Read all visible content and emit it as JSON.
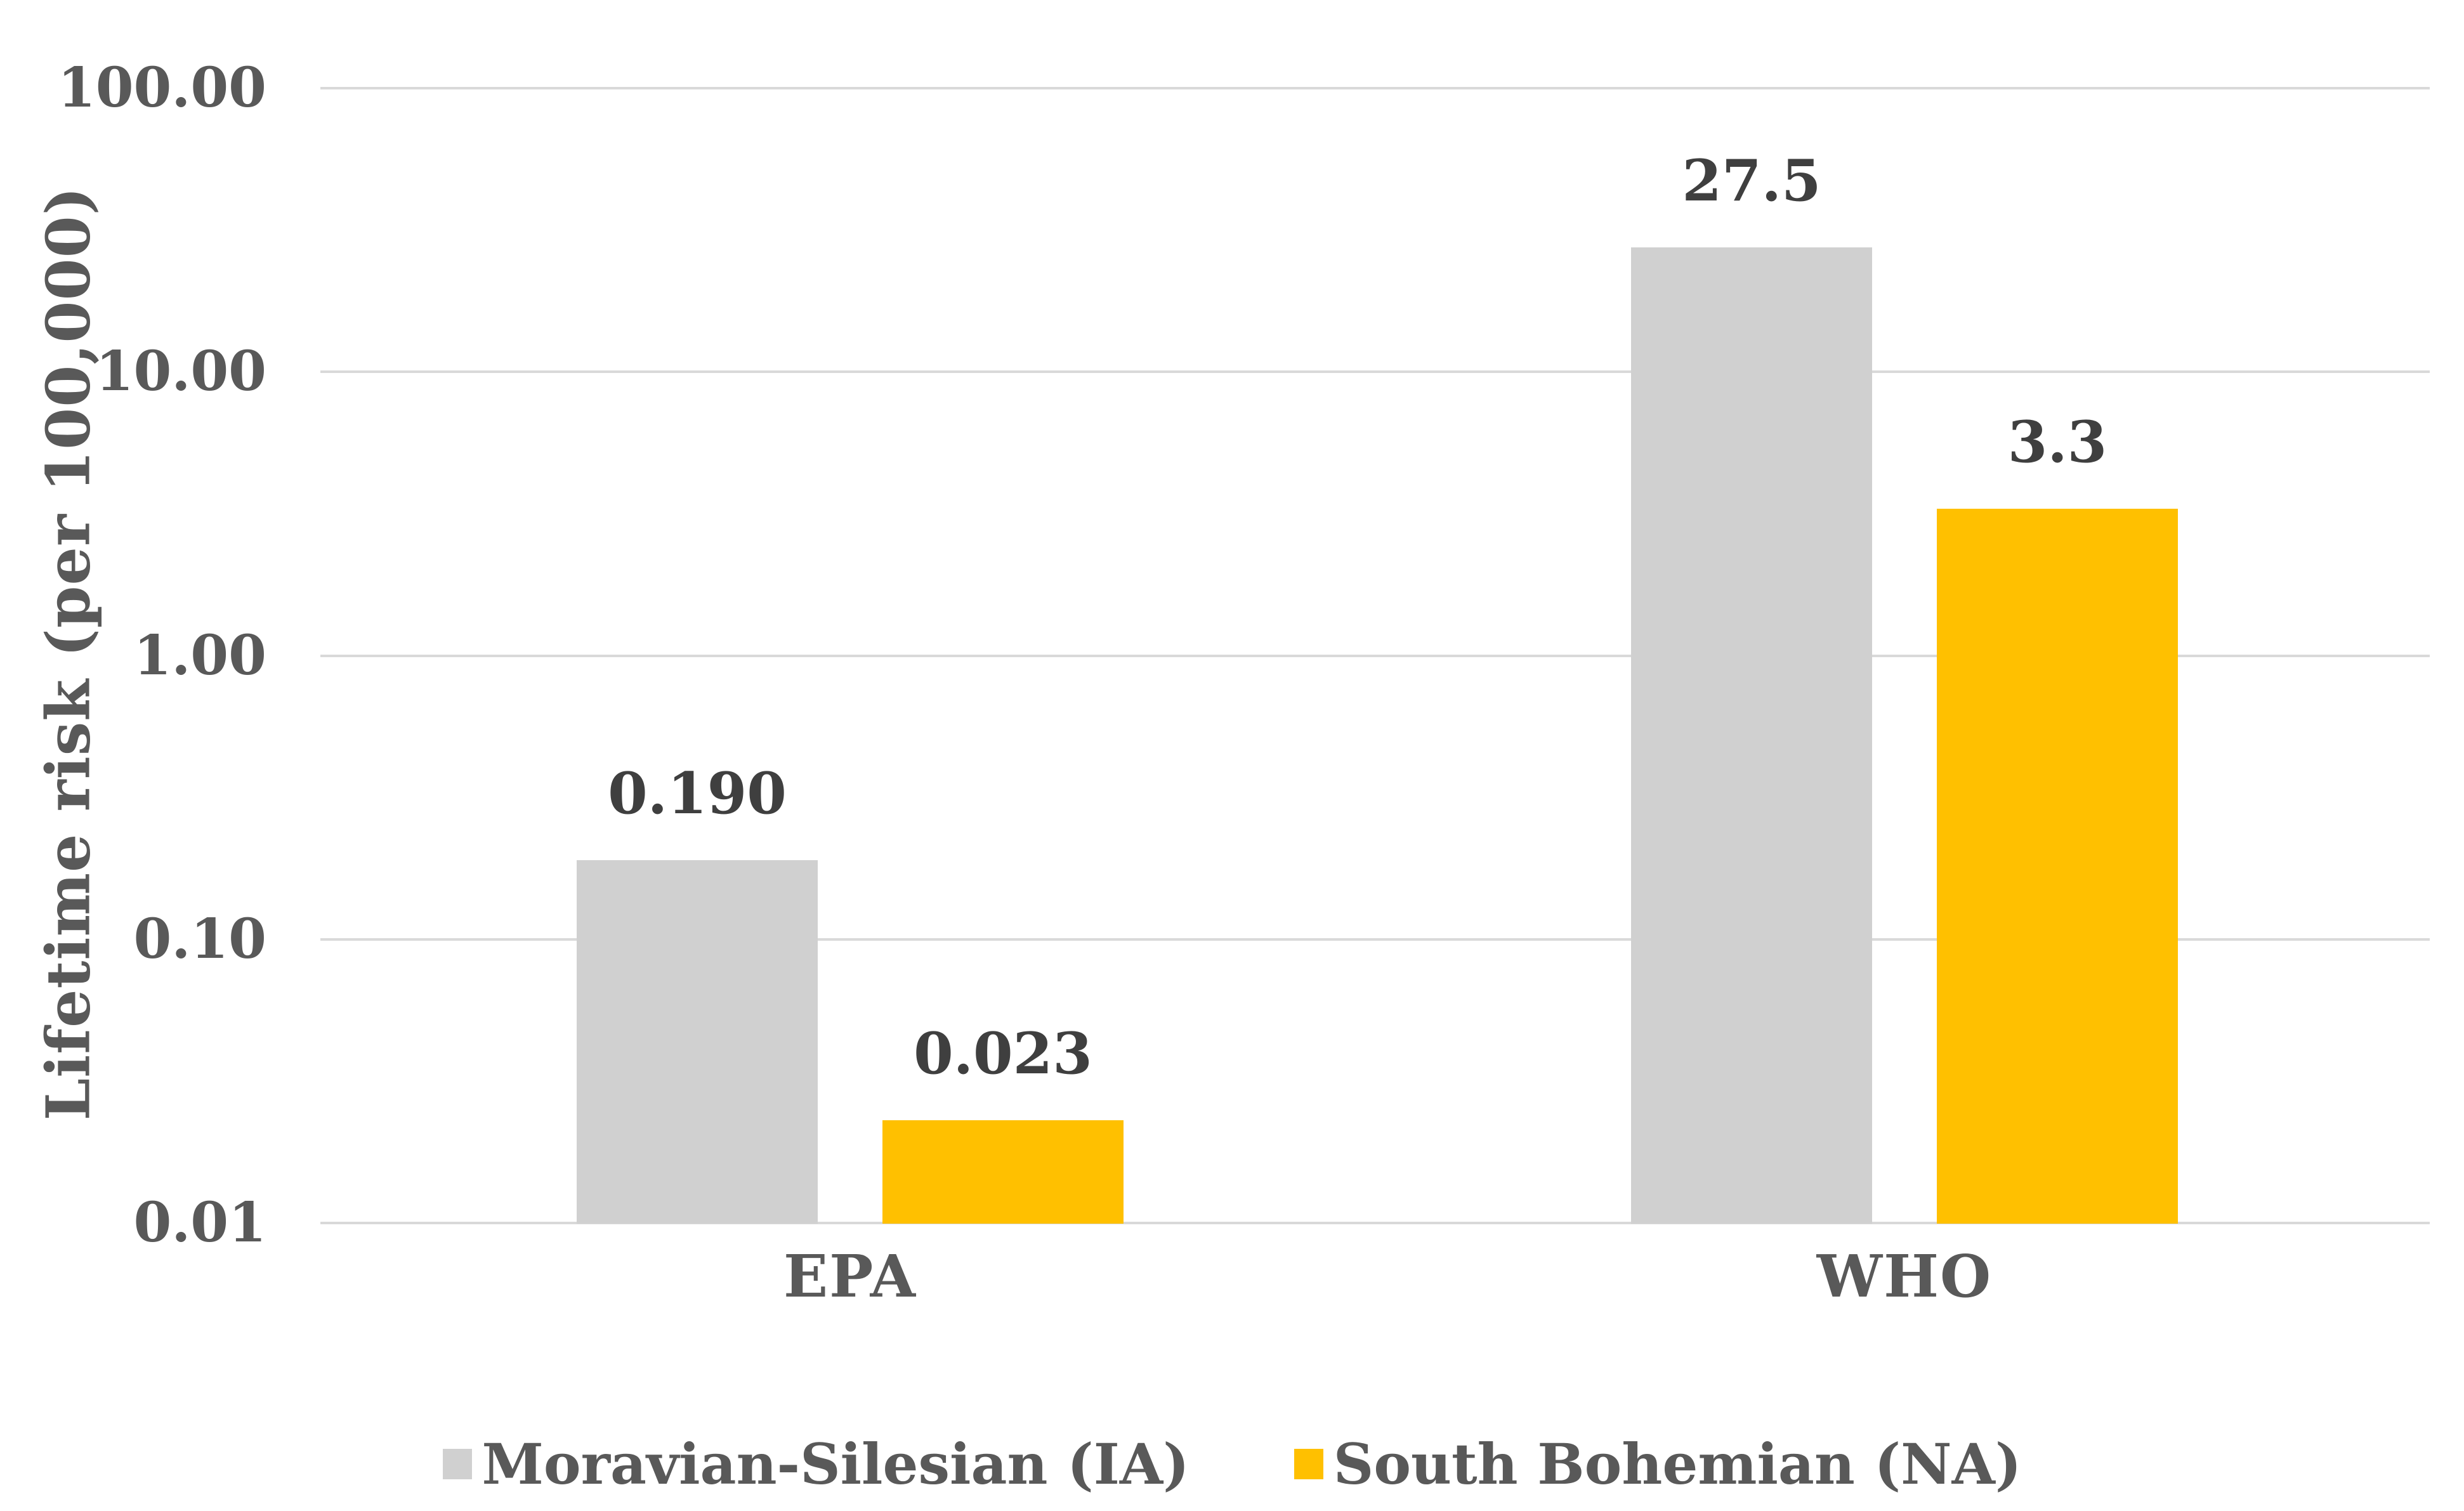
{
  "chart_data": {
    "type": "bar",
    "title": "",
    "ylabel": "Lifetime risk (per 100,000)",
    "xlabel": "",
    "y_scale": "log",
    "ylim": [
      0.01,
      100
    ],
    "y_ticks": [
      {
        "label": "100.00",
        "value": 100
      },
      {
        "label": "10.00",
        "value": 10
      },
      {
        "label": "1.00",
        "value": 1
      },
      {
        "label": "0.10",
        "value": 0.1
      },
      {
        "label": "0.01",
        "value": 0.01
      }
    ],
    "categories": [
      "EPA",
      "WHO"
    ],
    "series": [
      {
        "name": "Moravian-Silesian (IA)",
        "color": "#D0D0D0",
        "values": [
          0.19,
          27.5
        ],
        "value_labels": [
          "0.190",
          "27.5"
        ]
      },
      {
        "name": "South Bohemian (NA)",
        "color": "#FFC000",
        "values": [
          0.023,
          3.3
        ],
        "value_labels": [
          "0.023",
          "3.3"
        ]
      }
    ],
    "grid": true,
    "legend_position": "bottom"
  },
  "colors": {
    "gridline": "#D9D9D9",
    "axis_text": "#595959",
    "data_label_text": "#3F3F3F",
    "background": "#FFFFFF",
    "series_gray": "#D0D0D0",
    "series_yellow": "#FFC000"
  }
}
